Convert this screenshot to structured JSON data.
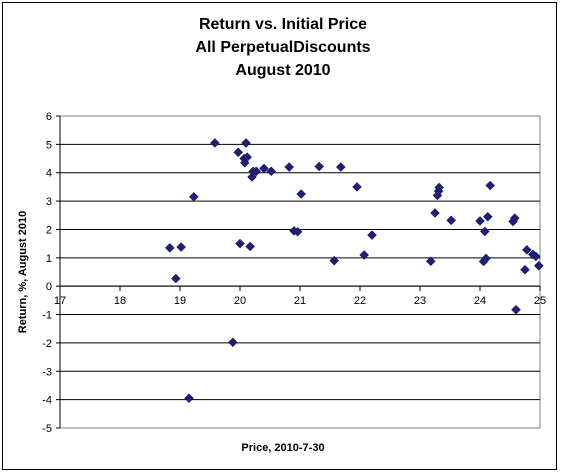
{
  "chart_data": {
    "type": "scatter",
    "title_lines": [
      "Return vs. Initial Price",
      "All PerpetualDiscounts",
      "August 2010"
    ],
    "xlabel": "Price, 2010-7-30",
    "ylabel": "Return, %, August 2010",
    "xlim": [
      17,
      25
    ],
    "ylim": [
      -5,
      6
    ],
    "x_ticks": [
      17,
      18,
      19,
      20,
      21,
      22,
      23,
      24,
      25
    ],
    "y_ticks": [
      -5,
      -4,
      -3,
      -2,
      -1,
      0,
      1,
      2,
      3,
      4,
      5,
      6
    ],
    "grid": "horizontal",
    "legend": "none",
    "marker": "diamond",
    "marker_color": "#1f1f7a",
    "points": [
      {
        "x": 18.83,
        "y": 1.35
      },
      {
        "x": 18.93,
        "y": 0.27
      },
      {
        "x": 19.02,
        "y": 1.38
      },
      {
        "x": 19.15,
        "y": -3.95
      },
      {
        "x": 19.23,
        "y": 3.15
      },
      {
        "x": 19.58,
        "y": 5.05
      },
      {
        "x": 19.88,
        "y": -1.98
      },
      {
        "x": 19.97,
        "y": 4.72
      },
      {
        "x": 20.0,
        "y": 1.5
      },
      {
        "x": 20.07,
        "y": 4.5
      },
      {
        "x": 20.08,
        "y": 4.35
      },
      {
        "x": 20.1,
        "y": 5.05
      },
      {
        "x": 20.12,
        "y": 4.55
      },
      {
        "x": 20.17,
        "y": 1.4
      },
      {
        "x": 20.2,
        "y": 3.85
      },
      {
        "x": 20.22,
        "y": 4.05
      },
      {
        "x": 20.27,
        "y": 4.05
      },
      {
        "x": 20.4,
        "y": 4.15
      },
      {
        "x": 20.52,
        "y": 4.05
      },
      {
        "x": 20.82,
        "y": 4.2
      },
      {
        "x": 20.9,
        "y": 1.95
      },
      {
        "x": 20.96,
        "y": 1.92
      },
      {
        "x": 21.02,
        "y": 3.25
      },
      {
        "x": 21.32,
        "y": 4.22
      },
      {
        "x": 21.57,
        "y": 0.9
      },
      {
        "x": 21.68,
        "y": 4.2
      },
      {
        "x": 21.95,
        "y": 3.5
      },
      {
        "x": 22.07,
        "y": 1.1
      },
      {
        "x": 22.2,
        "y": 1.8
      },
      {
        "x": 23.18,
        "y": 0.88
      },
      {
        "x": 23.25,
        "y": 2.58
      },
      {
        "x": 23.29,
        "y": 3.2
      },
      {
        "x": 23.31,
        "y": 3.35
      },
      {
        "x": 23.32,
        "y": 3.48
      },
      {
        "x": 23.52,
        "y": 2.32
      },
      {
        "x": 24.0,
        "y": 2.3
      },
      {
        "x": 24.06,
        "y": 0.87
      },
      {
        "x": 24.08,
        "y": 1.93
      },
      {
        "x": 24.1,
        "y": 0.98
      },
      {
        "x": 24.13,
        "y": 2.45
      },
      {
        "x": 24.17,
        "y": 3.55
      },
      {
        "x": 24.55,
        "y": 2.28
      },
      {
        "x": 24.58,
        "y": 2.4
      },
      {
        "x": 24.6,
        "y": -0.83
      },
      {
        "x": 24.75,
        "y": 0.58
      },
      {
        "x": 24.78,
        "y": 1.28
      },
      {
        "x": 24.88,
        "y": 1.12
      },
      {
        "x": 24.93,
        "y": 1.05
      },
      {
        "x": 24.98,
        "y": 0.72
      }
    ]
  }
}
